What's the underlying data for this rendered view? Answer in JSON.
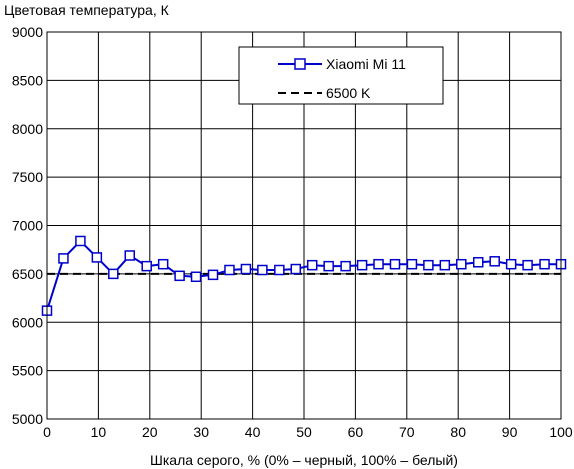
{
  "chart_data": {
    "type": "line",
    "ylabel": "Цветовая температура, К",
    "xlabel": "Шкала серого, % (0% – черный, 100% – белый)",
    "xlim": [
      0,
      100
    ],
    "ylim": [
      5000,
      9000
    ],
    "x_ticks": [
      0,
      10,
      20,
      30,
      40,
      50,
      60,
      70,
      80,
      90,
      100
    ],
    "y_ticks": [
      5000,
      5500,
      6000,
      6500,
      7000,
      7500,
      8000,
      8500,
      9000
    ],
    "grid": true,
    "legend_position": "top-right",
    "series": [
      {
        "name": "Xiaomi Mi 11",
        "color": "#0000cc",
        "marker": "square-open",
        "x": [
          0,
          3.2,
          6.5,
          9.7,
          12.9,
          16.1,
          19.4,
          22.6,
          25.8,
          29.0,
          32.3,
          35.5,
          38.7,
          41.9,
          45.2,
          48.4,
          51.6,
          54.8,
          58.1,
          61.3,
          64.5,
          67.7,
          71.0,
          74.2,
          77.4,
          80.6,
          83.9,
          87.1,
          90.3,
          93.5,
          96.8,
          100
        ],
        "y": [
          6120,
          6660,
          6840,
          6670,
          6500,
          6690,
          6580,
          6600,
          6480,
          6470,
          6490,
          6540,
          6550,
          6540,
          6540,
          6550,
          6590,
          6580,
          6580,
          6590,
          6600,
          6600,
          6600,
          6590,
          6590,
          6600,
          6620,
          6630,
          6600,
          6590,
          6600,
          6600
        ]
      },
      {
        "name": "6500 K",
        "color": "#000000",
        "style": "dashed",
        "x": [
          0,
          100
        ],
        "y": [
          6500,
          6500
        ]
      }
    ]
  }
}
